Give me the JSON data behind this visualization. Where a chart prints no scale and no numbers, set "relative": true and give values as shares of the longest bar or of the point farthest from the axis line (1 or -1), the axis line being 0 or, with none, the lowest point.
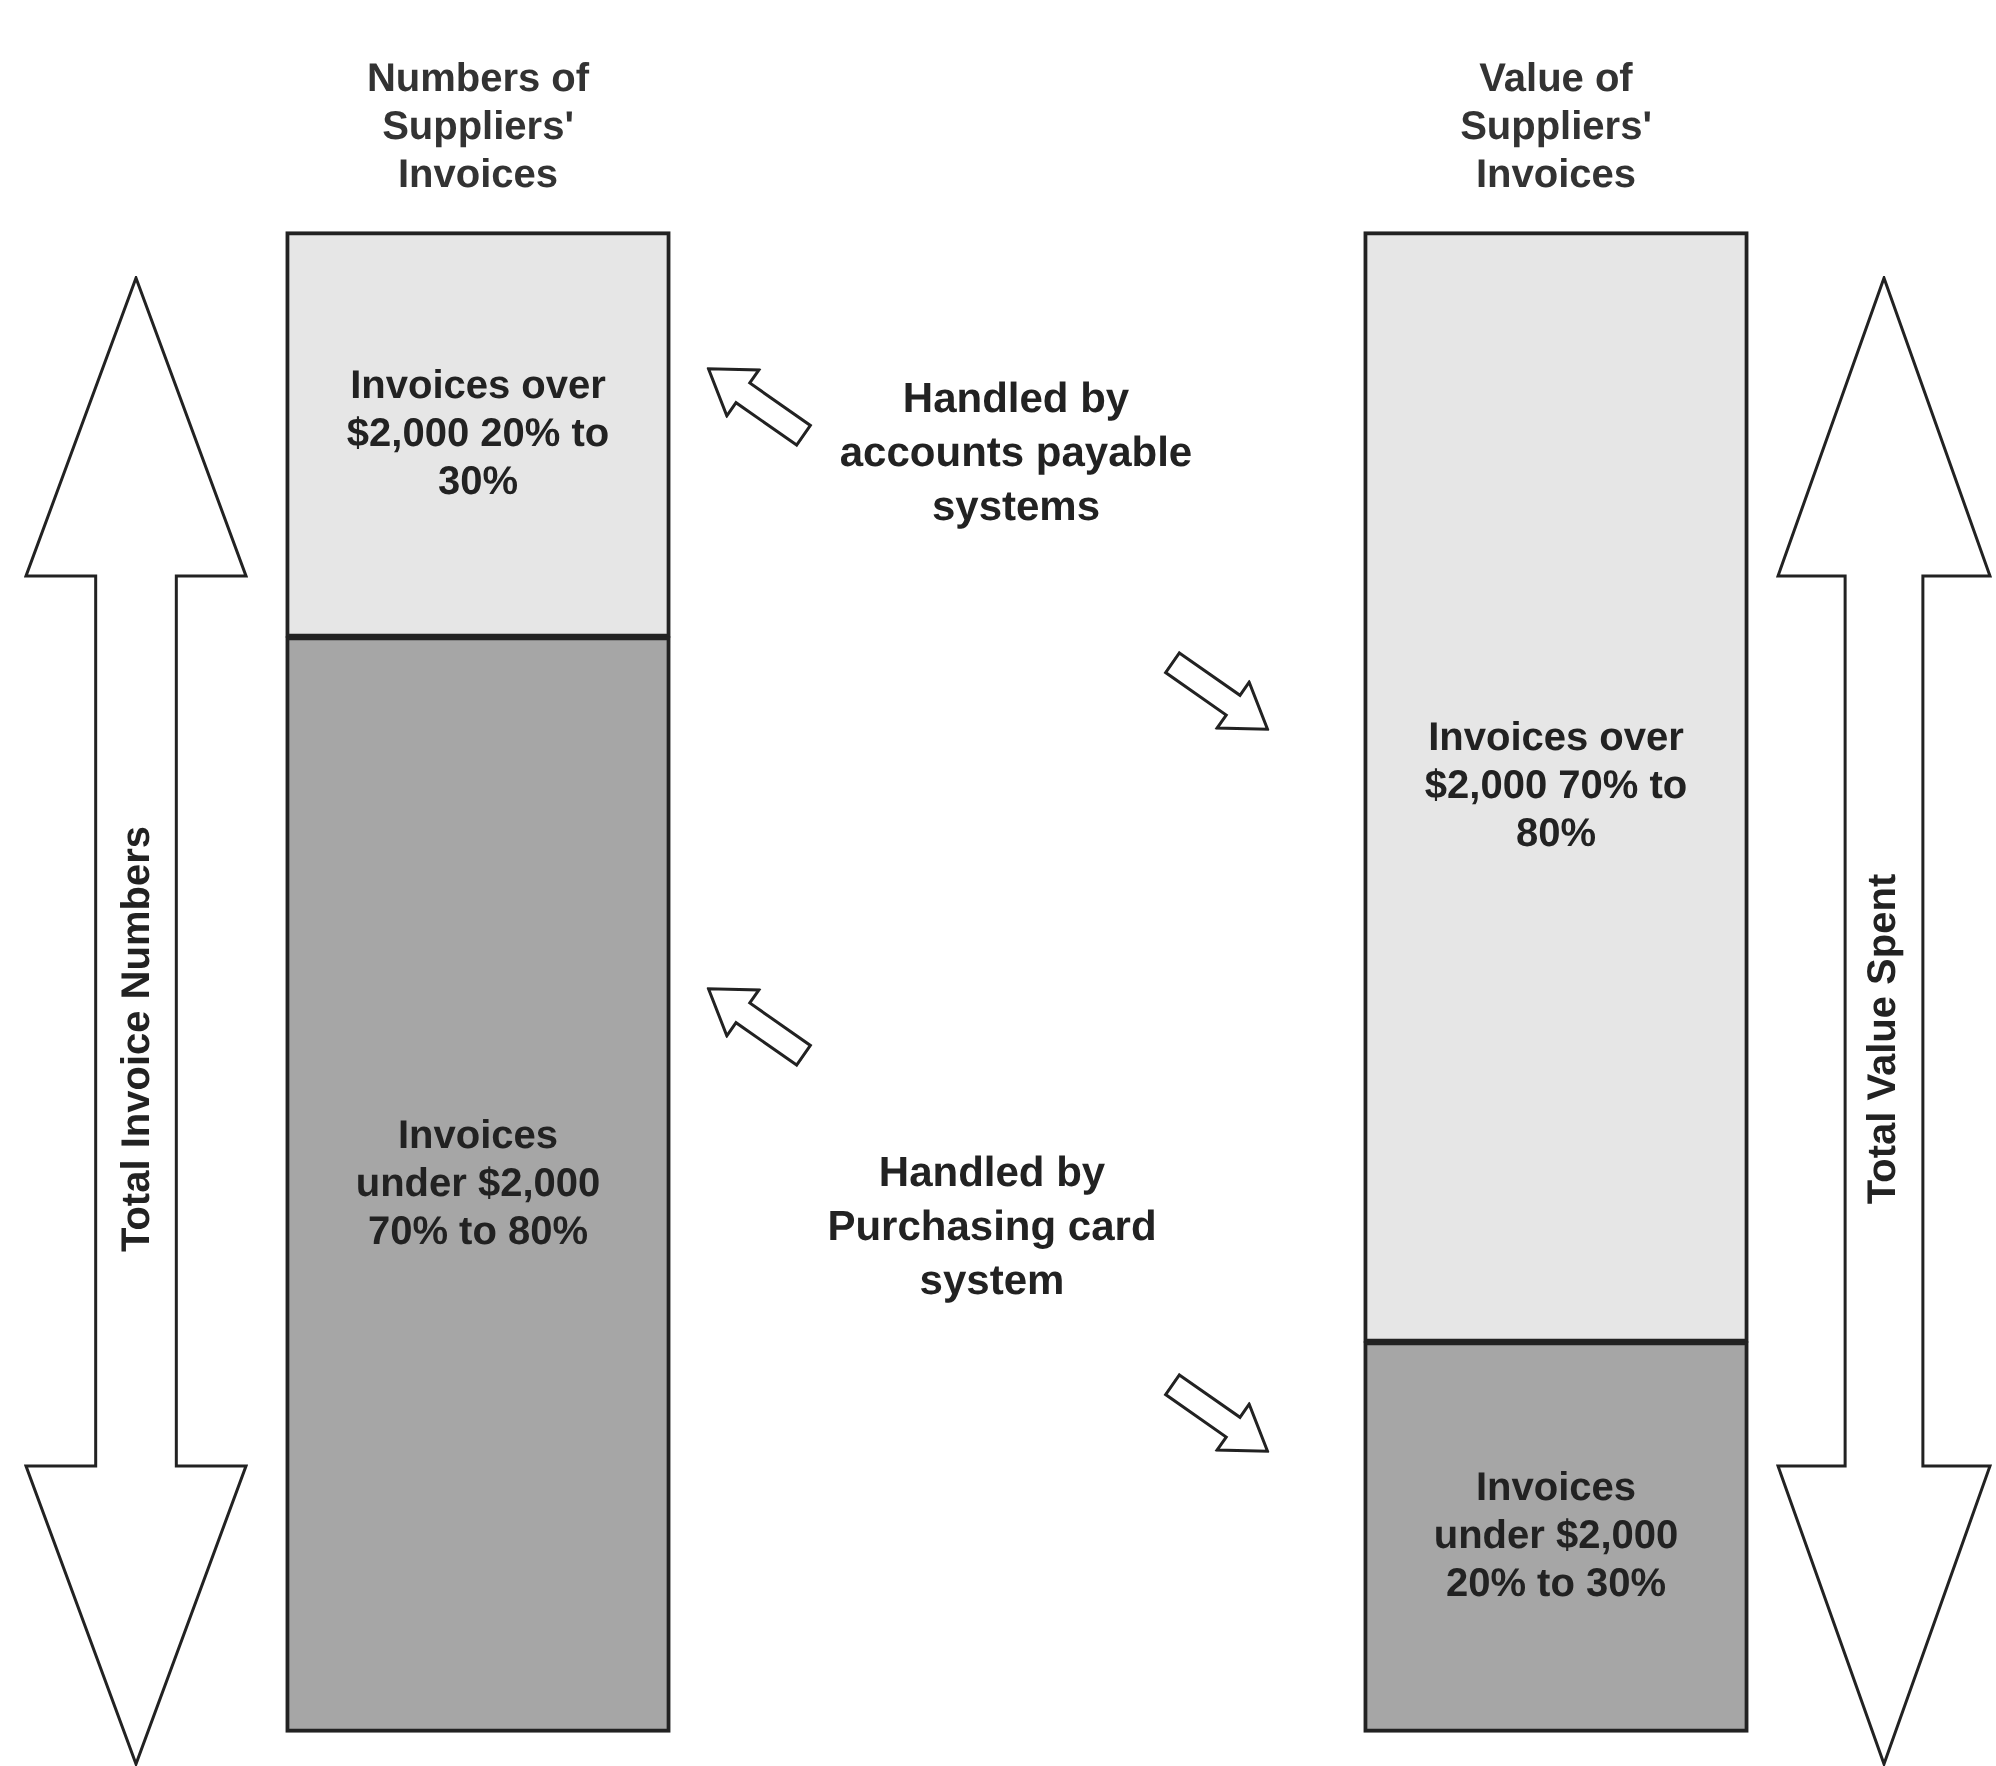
{
  "chart_data": {
    "type": "bar",
    "stacked": true,
    "relative": true,
    "legend": false,
    "grid": false,
    "categories": [
      "Numbers of Suppliers' Invoices",
      "Value of Suppliers' Invoices"
    ],
    "ylabel": "Total Invoice Numbers",
    "y2label": "Total Value Spent",
    "series": [
      {
        "color": "#a6a6a6",
        "values": [
          0.73,
          0.26
        ]
      },
      {
        "color": "#e6e6e6",
        "values": [
          0.27,
          0.74
        ]
      }
    ],
    "annotations": [
      "Invoices over $2,000 20% to 30%",
      "Invoices under $2,000 70% to 80%",
      "Invoices over $2,000 70% to 80%",
      "Invoices under $2,000 20% to 30%",
      "Handled by accounts payable systems",
      "Handled by Purchasing card system"
    ]
  }
}
